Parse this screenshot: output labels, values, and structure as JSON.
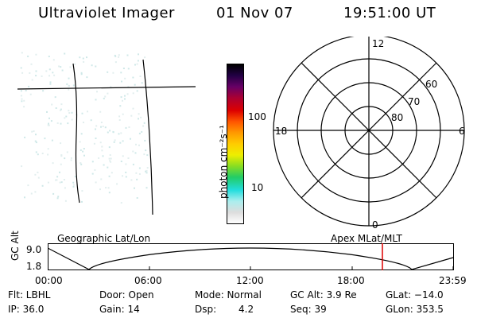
{
  "header": {
    "instrument": "Ultraviolet Imager",
    "date": "01 Nov 07",
    "time": "19:51:00 UT"
  },
  "colorbar": {
    "unit_label": "photon cm⁻²s⁻¹",
    "ticks": [
      "100",
      "10"
    ],
    "colors": [
      "#ffffff",
      "#dddddd",
      "#aaeeee",
      "#22dddd",
      "#22cc66",
      "#88dd22",
      "#eeee00",
      "#ffcc00",
      "#ff9900",
      "#ff5500",
      "#dd0000",
      "#aa0033",
      "#660066",
      "#220044",
      "#000000"
    ]
  },
  "polar_plot": {
    "mlt_labels": {
      "top": "12",
      "left": "18",
      "right": "6",
      "bottom": "0"
    },
    "lat_labels": [
      "60",
      "70",
      "80"
    ]
  },
  "orbit": {
    "left_title": "Geographic Lat/Lon",
    "right_title": "Apex MLat/MLT",
    "y_axis_label": "GC Alt",
    "y_ticks": [
      "9.0",
      "1.8"
    ],
    "x_ticks": [
      "00:00",
      "06:00",
      "12:00",
      "18:00",
      "23:59"
    ],
    "marker_color": "#dd0000"
  },
  "status": {
    "flt": "Flt: LBHL",
    "ip": "IP: 36.0",
    "door": "Door: Open",
    "gain": "Gain: 14",
    "mode": "Mode: Normal",
    "dsp_label": "Dsp:",
    "dsp_value": "4.2",
    "gc_alt": "GC Alt: 3.9 Re",
    "seq": "Seq: 39",
    "glat": "GLat: −14.0",
    "glon": "GLon: 353.5"
  }
}
